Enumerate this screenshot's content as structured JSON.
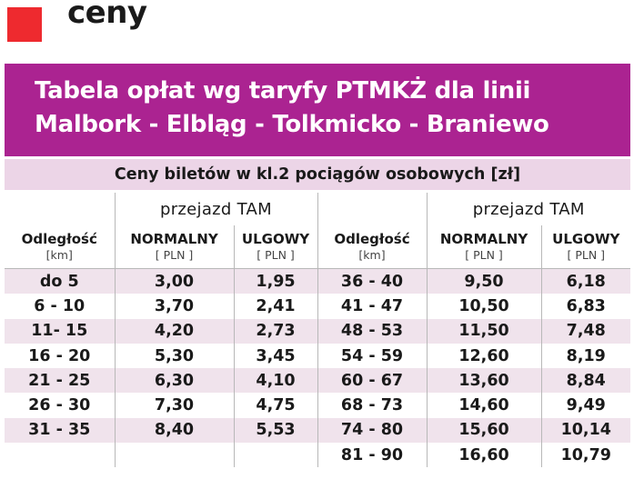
{
  "heading": {
    "word": "ceny",
    "accent_color": "#ee2a2f"
  },
  "banner": {
    "line1": "Tabela opłat wg taryfy PTMKŻ dla linii",
    "line2": "Malbork - Elbląg - Tolkmicko - Braniewo",
    "color": "#ab2391"
  },
  "subtitle": "Ceny biletów w kl.2 pociągów osobowych [zł]",
  "headers": {
    "group": "przejazd TAM",
    "distance": "Odległość",
    "distance_unit": "[km]",
    "normal": "NORMALNY",
    "reduced": "ULGOWY",
    "price_unit": "[ PLN ]"
  },
  "left_rows": [
    {
      "dist": "do 5",
      "normal": "3,00",
      "reduced": "1,95"
    },
    {
      "dist": "6 - 10",
      "normal": "3,70",
      "reduced": "2,41"
    },
    {
      "dist": "11- 15",
      "normal": "4,20",
      "reduced": "2,73"
    },
    {
      "dist": "16 - 20",
      "normal": "5,30",
      "reduced": "3,45"
    },
    {
      "dist": "21 - 25",
      "normal": "6,30",
      "reduced": "4,10"
    },
    {
      "dist": "26 - 30",
      "normal": "7,30",
      "reduced": "4,75"
    },
    {
      "dist": "31 - 35",
      "normal": "8,40",
      "reduced": "5,53"
    },
    {
      "dist": "",
      "normal": "",
      "reduced": ""
    }
  ],
  "right_rows": [
    {
      "dist": "36 - 40",
      "normal": "9,50",
      "reduced": "6,18"
    },
    {
      "dist": "41 - 47",
      "normal": "10,50",
      "reduced": "6,83"
    },
    {
      "dist": "48 - 53",
      "normal": "11,50",
      "reduced": "7,48"
    },
    {
      "dist": "54 - 59",
      "normal": "12,60",
      "reduced": "8,19"
    },
    {
      "dist": "60 - 67",
      "normal": "13,60",
      "reduced": "8,84"
    },
    {
      "dist": "68 - 73",
      "normal": "14,60",
      "reduced": "9,49"
    },
    {
      "dist": "74 - 80",
      "normal": "15,60",
      "reduced": "10,14"
    },
    {
      "dist": "81 - 90",
      "normal": "16,60",
      "reduced": "10,79"
    }
  ]
}
